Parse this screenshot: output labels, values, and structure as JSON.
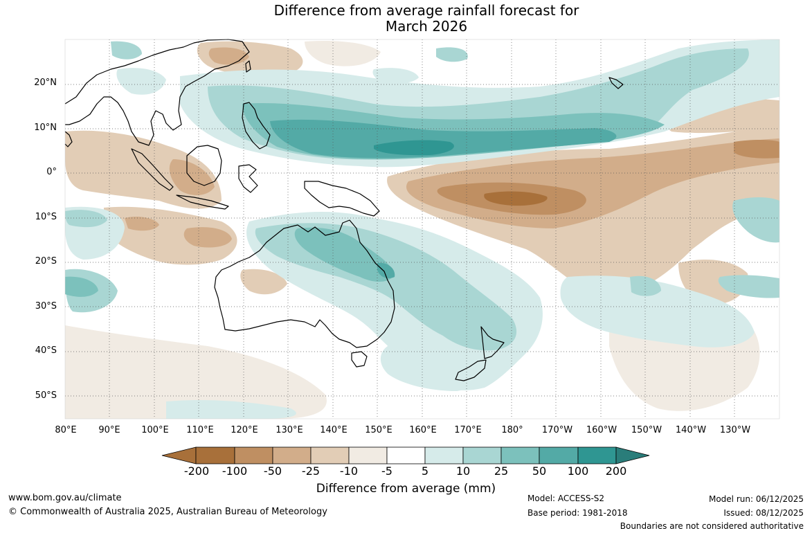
{
  "title": {
    "line1": "Difference from average rainfall forecast for",
    "line2": "March 2026"
  },
  "lat_labels": [
    "20°N",
    "10°N",
    "0°",
    "10°S",
    "20°S",
    "30°S",
    "40°S",
    "50°S"
  ],
  "lon_labels": [
    "80°E",
    "90°E",
    "100°E",
    "110°E",
    "120°E",
    "130°E",
    "140°E",
    "150°E",
    "160°E",
    "170°E",
    "180°",
    "170°W",
    "160°W",
    "150°W",
    "140°W",
    "130°W"
  ],
  "colorbar": {
    "labels": [
      "-200",
      "-100",
      "-50",
      "-25",
      "-10",
      "-5",
      "5",
      "10",
      "25",
      "50",
      "100",
      "200"
    ],
    "colors": [
      "#a8703a",
      "#bf8f62",
      "#d2ad8a",
      "#e2cdb6",
      "#f1ebe3",
      "#ffffff",
      "#d6ebea",
      "#a9d6d3",
      "#7cc1bc",
      "#53aaa6",
      "#2f9692",
      "#2a7d7a"
    ],
    "title": "Difference from average (mm)"
  },
  "footer": {
    "url": "www.bom.gov.au/climate",
    "copyright": "© Commonwealth of Australia 2025, Australian Bureau of Meteorology",
    "model": "Model: ACCESS-S2",
    "base_period": "Base period: 1981-2018",
    "model_run": "Model run: 06/12/2025",
    "issued": "Issued: 08/12/2025",
    "disclaimer": "Boundaries are not considered authoritative"
  }
}
